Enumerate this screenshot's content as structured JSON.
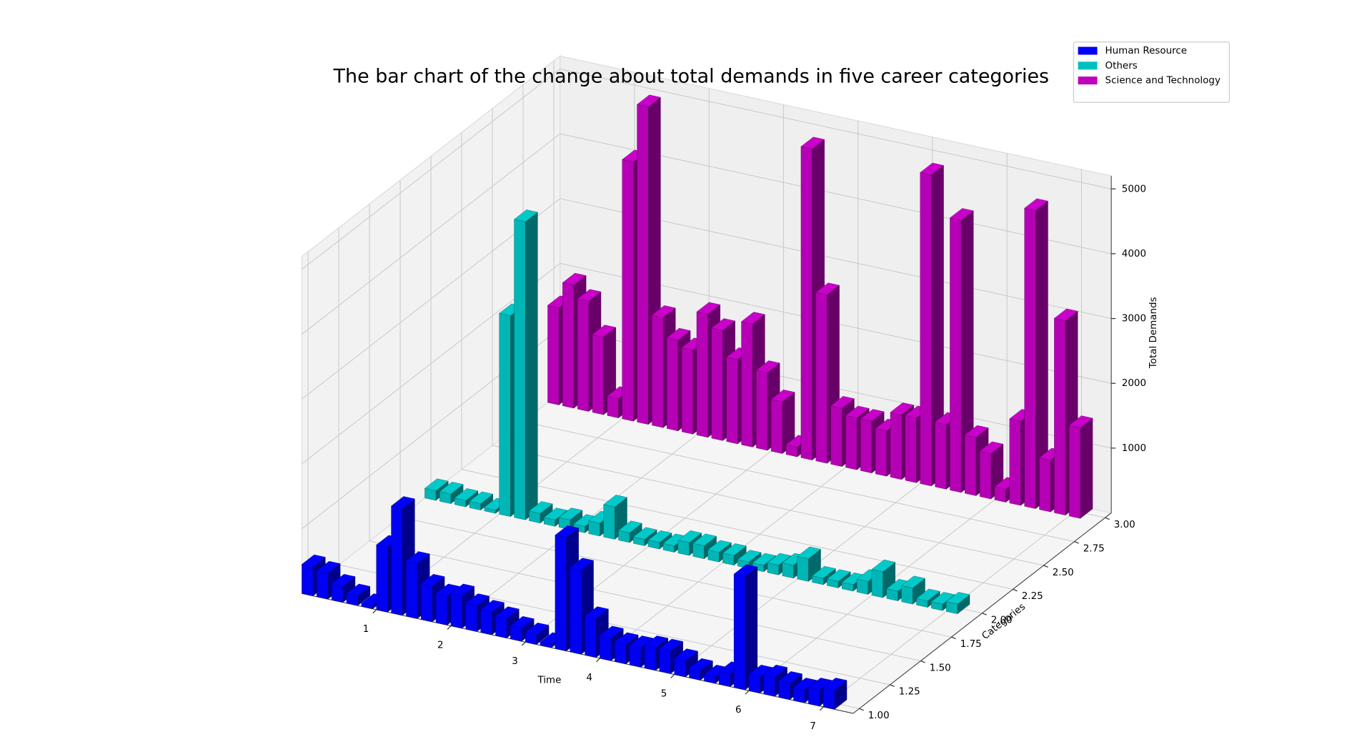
{
  "chart_data": {
    "type": "bar3d",
    "title": "The bar chart of the change about total demands in five career categories",
    "xlabel": "Time",
    "ylabel": "Categories",
    "zlabel": "Total Demands",
    "x": [
      0,
      0.2,
      0.4,
      0.6,
      0.8,
      1,
      1.2,
      1.4,
      1.6,
      1.8,
      2,
      2.2,
      2.4,
      2.6,
      2.8,
      3,
      3.2,
      3.4,
      3.6,
      3.8,
      4,
      4.2,
      4.4,
      4.6,
      4.8,
      5,
      5.2,
      5.4,
      5.6,
      5.8,
      6,
      6.2,
      6.4,
      6.6,
      6.8,
      7
    ],
    "series": [
      {
        "name": "Human Resource",
        "color": "#0000ff",
        "y": 1,
        "values": [
          450,
          400,
          250,
          150,
          50,
          1000,
          1650,
          850,
          550,
          450,
          500,
          400,
          350,
          300,
          200,
          150,
          50,
          1750,
          1300,
          600,
          350,
          300,
          300,
          350,
          350,
          250,
          150,
          100,
          200,
          1750,
          250,
          300,
          250,
          200,
          250,
          300
        ]
      },
      {
        "name": "Others",
        "color": "#00bfbf",
        "y": 2,
        "values": [
          150,
          150,
          100,
          100,
          50,
          3100,
          4600,
          150,
          100,
          150,
          100,
          200,
          500,
          150,
          100,
          100,
          100,
          200,
          200,
          150,
          150,
          100,
          100,
          150,
          200,
          350,
          100,
          100,
          100,
          200,
          400,
          150,
          250,
          100,
          100,
          150
        ]
      },
      {
        "name": "Science and Technology",
        "color": "#bf00bf",
        "y": 3,
        "values": [
          1500,
          1900,
          1700,
          1200,
          300,
          4000,
          4900,
          1700,
          1400,
          1300,
          1900,
          1700,
          1300,
          1900,
          1200,
          800,
          150,
          4800,
          2600,
          900,
          800,
          800,
          700,
          1000,
          1000,
          4800,
          1000,
          4200,
          900,
          700,
          200,
          1300,
          4600,
          800,
          3000,
          1400
        ]
      }
    ],
    "xlim": [
      0,
      7.4
    ],
    "xticks": [
      1,
      2,
      3,
      4,
      5,
      6,
      7
    ],
    "ylim": [
      0.95,
      3.05
    ],
    "yticks": [
      {
        "value": 1,
        "label": "1.00"
      },
      {
        "value": 1.25,
        "label": "1.25"
      },
      {
        "value": 1.5,
        "label": "1.50"
      },
      {
        "value": 1.75,
        "label": "1.75"
      },
      {
        "value": 2,
        "label": "2.00"
      },
      {
        "value": 2.25,
        "label": "2.25"
      },
      {
        "value": 2.5,
        "label": "2.50"
      },
      {
        "value": 2.75,
        "label": "2.75"
      },
      {
        "value": 3,
        "label": "3.00"
      }
    ],
    "zlim": [
      0,
      5200
    ],
    "zticks": [
      1000,
      2000,
      3000,
      4000,
      5000
    ],
    "grid": true,
    "legend": "upper right"
  }
}
